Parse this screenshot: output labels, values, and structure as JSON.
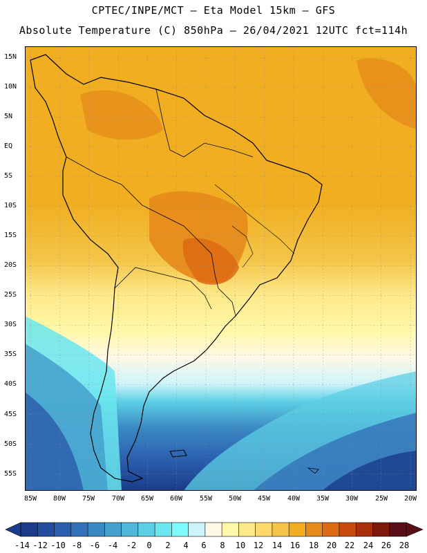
{
  "header": {
    "line1": "CPTEC/INPE/MCT –  Eta Model 15km – GFS",
    "line2": "Absolute Temperature (C) 850hPa – 26/04/2021 12UTC fct=114h"
  },
  "map": {
    "lat_labels": [
      "15N",
      "10N",
      "5N",
      "EQ",
      "5S",
      "10S",
      "15S",
      "20S",
      "25S",
      "30S",
      "35S",
      "40S",
      "45S",
      "50S",
      "55S"
    ],
    "lon_labels": [
      "85W",
      "80W",
      "75W",
      "70W",
      "65W",
      "60W",
      "55W",
      "50W",
      "45W",
      "40W",
      "35W",
      "30W",
      "25W",
      "20W"
    ],
    "lat_range": [
      17,
      -58
    ],
    "lon_range": [
      -86,
      -19
    ]
  },
  "colorbar": {
    "labels": [
      "-14",
      "-12",
      "-10",
      "-8",
      "-6",
      "-4",
      "-2",
      "0",
      "2",
      "4",
      "6",
      "8",
      "10",
      "12",
      "14",
      "16",
      "18",
      "20",
      "22",
      "24",
      "26",
      "28"
    ],
    "colors": [
      "#1a3c8a",
      "#234d9e",
      "#2b5fae",
      "#3372b8",
      "#3a88c2",
      "#44a0cc",
      "#4fb8d8",
      "#5ccfe4",
      "#6ae6ef",
      "#7dfbfd",
      "#cdf4fb",
      "#fff8e6",
      "#fff8a8",
      "#fde98a",
      "#fbd96a",
      "#f4c548",
      "#f0ae20",
      "#e68a1a",
      "#dd6a12",
      "#c84a0e",
      "#a8300c",
      "#7e1a0c",
      "#5a0e16"
    ]
  }
}
